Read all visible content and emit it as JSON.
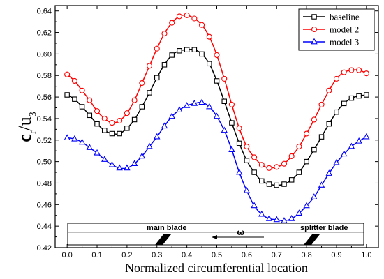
{
  "chart_data": {
    "type": "line",
    "xlabel": "Normalized circumferential location",
    "ylabel": {
      "main": "c",
      "sub1": "r",
      "slash": "/u",
      "sub2": "3"
    },
    "xlim": [
      -0.04,
      1.04
    ],
    "ylim": [
      0.42,
      0.645
    ],
    "xticks": [
      0.0,
      0.1,
      0.2,
      0.3,
      0.4,
      0.5,
      0.6,
      0.7,
      0.8,
      0.9,
      1.0
    ],
    "xtick_labels": [
      "0.0",
      "0.1",
      "0.2",
      "0.3",
      "0.4",
      "0.5",
      "0.6",
      "0.7",
      "0.8",
      "0.9",
      "1.0"
    ],
    "yticks": [
      0.42,
      0.44,
      0.46,
      0.48,
      0.5,
      0.52,
      0.54,
      0.56,
      0.58,
      0.6,
      0.62,
      0.64
    ],
    "ytick_labels": [
      "0.42",
      "0.44",
      "0.46",
      "0.48",
      "0.50",
      "0.52",
      "0.54",
      "0.56",
      "0.58",
      "0.60",
      "0.62",
      "0.64"
    ],
    "grid": false,
    "legend_position": "top-right",
    "x": [
      0.0,
      0.025,
      0.05,
      0.075,
      0.1,
      0.125,
      0.15,
      0.175,
      0.2,
      0.225,
      0.25,
      0.275,
      0.3,
      0.325,
      0.35,
      0.375,
      0.4,
      0.425,
      0.45,
      0.475,
      0.5,
      0.525,
      0.55,
      0.575,
      0.6,
      0.625,
      0.65,
      0.675,
      0.7,
      0.725,
      0.75,
      0.775,
      0.8,
      0.825,
      0.85,
      0.875,
      0.9,
      0.925,
      0.95,
      0.975,
      1.0
    ],
    "series": [
      {
        "name": "baseline",
        "color": "#000000",
        "marker": "square",
        "values": [
          0.562,
          0.558,
          0.551,
          0.543,
          0.535,
          0.529,
          0.526,
          0.526,
          0.531,
          0.539,
          0.551,
          0.564,
          0.578,
          0.59,
          0.599,
          0.603,
          0.604,
          0.604,
          0.6,
          0.591,
          0.575,
          0.556,
          0.536,
          0.517,
          0.501,
          0.49,
          0.482,
          0.479,
          0.478,
          0.479,
          0.483,
          0.49,
          0.5,
          0.511,
          0.523,
          0.535,
          0.546,
          0.554,
          0.559,
          0.561,
          0.562
        ]
      },
      {
        "name": "model 2",
        "color": "#ff0000",
        "marker": "circle",
        "values": [
          0.581,
          0.575,
          0.566,
          0.557,
          0.547,
          0.54,
          0.536,
          0.538,
          0.545,
          0.557,
          0.573,
          0.589,
          0.605,
          0.619,
          0.629,
          0.635,
          0.636,
          0.633,
          0.627,
          0.616,
          0.599,
          0.577,
          0.553,
          0.531,
          0.514,
          0.504,
          0.497,
          0.494,
          0.495,
          0.498,
          0.505,
          0.514,
          0.526,
          0.539,
          0.553,
          0.566,
          0.577,
          0.583,
          0.585,
          0.585,
          0.582
        ]
      },
      {
        "name": "model 3",
        "color": "#0000ff",
        "marker": "triangle",
        "values": [
          0.522,
          0.521,
          0.518,
          0.513,
          0.508,
          0.502,
          0.497,
          0.494,
          0.494,
          0.498,
          0.505,
          0.514,
          0.523,
          0.533,
          0.542,
          0.548,
          0.552,
          0.554,
          0.555,
          0.551,
          0.542,
          0.529,
          0.511,
          0.49,
          0.473,
          0.459,
          0.451,
          0.447,
          0.446,
          0.445,
          0.447,
          0.452,
          0.459,
          0.467,
          0.478,
          0.489,
          0.499,
          0.507,
          0.514,
          0.519,
          0.523
        ]
      }
    ],
    "annotations": {
      "main_blade": "main blade",
      "splitter_blade": "splitter blade",
      "omega": "ω"
    }
  }
}
